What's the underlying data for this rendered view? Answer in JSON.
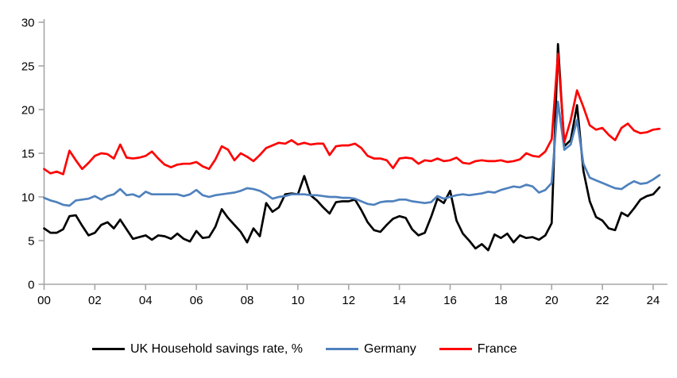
{
  "chart_data": {
    "type": "line",
    "title": "",
    "x_description": "Quarterly data, 2000Q1 to 2024Q2",
    "x_tick_labels": [
      "00",
      "02",
      "04",
      "06",
      "08",
      "10",
      "12",
      "14",
      "16",
      "18",
      "20",
      "22",
      "24"
    ],
    "y_tick_labels": [
      "0",
      "5",
      "10",
      "15",
      "20",
      "25",
      "30"
    ],
    "y_ticks": [
      0,
      5,
      10,
      15,
      20,
      25,
      30
    ],
    "ylim": [
      0,
      30
    ],
    "grid": false,
    "legend_position": "bottom",
    "axis_color": "#a6a6a6",
    "series": [
      {
        "name": "UK Household savings rate, %",
        "color": "#000000",
        "values": [
          6.4,
          5.9,
          5.9,
          6.3,
          7.8,
          7.9,
          6.7,
          5.6,
          5.9,
          6.8,
          7.1,
          6.4,
          7.4,
          6.3,
          5.2,
          5.4,
          5.6,
          5.1,
          5.6,
          5.5,
          5.2,
          5.8,
          5.2,
          4.9,
          6.1,
          5.3,
          5.4,
          6.6,
          8.6,
          7.6,
          6.8,
          6.0,
          4.8,
          6.4,
          5.5,
          9.3,
          8.3,
          8.8,
          10.3,
          10.4,
          10.3,
          12.4,
          10.2,
          9.6,
          8.8,
          8.1,
          9.4,
          9.5,
          9.5,
          9.7,
          8.5,
          7.1,
          6.2,
          6.0,
          6.8,
          7.5,
          7.8,
          7.6,
          6.3,
          5.6,
          5.9,
          7.7,
          9.8,
          9.3,
          10.7,
          7.3,
          5.8,
          5.0,
          4.1,
          4.6,
          3.9,
          5.7,
          5.3,
          5.8,
          4.8,
          5.6,
          5.3,
          5.4,
          5.1,
          5.6,
          7.0,
          27.5,
          15.8,
          16.5,
          20.5,
          13.0,
          9.5,
          7.7,
          7.3,
          6.4,
          6.2,
          8.2,
          7.8,
          8.7,
          9.7,
          10.1,
          10.3,
          11.1
        ]
      },
      {
        "name": "Germany",
        "color": "#4f81bd",
        "values": [
          9.9,
          9.6,
          9.4,
          9.1,
          9.0,
          9.6,
          9.7,
          9.8,
          10.1,
          9.7,
          10.1,
          10.3,
          10.9,
          10.2,
          10.3,
          10.0,
          10.6,
          10.3,
          10.3,
          10.3,
          10.3,
          10.3,
          10.1,
          10.3,
          10.8,
          10.2,
          10.0,
          10.2,
          10.3,
          10.4,
          10.5,
          10.7,
          11.0,
          10.9,
          10.7,
          10.3,
          9.8,
          10.0,
          10.1,
          10.3,
          10.3,
          10.3,
          10.2,
          10.2,
          10.1,
          10.0,
          10.0,
          9.9,
          9.9,
          9.8,
          9.5,
          9.2,
          9.1,
          9.4,
          9.5,
          9.5,
          9.7,
          9.7,
          9.5,
          9.4,
          9.3,
          9.4,
          10.1,
          9.8,
          10.0,
          10.2,
          10.3,
          10.2,
          10.3,
          10.4,
          10.6,
          10.5,
          10.8,
          11.0,
          11.2,
          11.1,
          11.4,
          11.2,
          10.5,
          10.8,
          11.6,
          20.9,
          15.4,
          16.0,
          18.8,
          13.8,
          12.2,
          11.9,
          11.6,
          11.3,
          11.0,
          10.9,
          11.4,
          11.8,
          11.5,
          11.6,
          12.0,
          12.5
        ]
      },
      {
        "name": "France",
        "color": "#ff0000",
        "values": [
          13.2,
          12.7,
          12.9,
          12.6,
          15.3,
          14.2,
          13.2,
          13.9,
          14.7,
          15.0,
          14.9,
          14.4,
          16.0,
          14.5,
          14.4,
          14.5,
          14.7,
          15.2,
          14.4,
          13.7,
          13.4,
          13.7,
          13.8,
          13.8,
          14.0,
          13.5,
          13.2,
          14.3,
          15.8,
          15.4,
          14.2,
          15.0,
          14.6,
          14.1,
          14.8,
          15.6,
          15.9,
          16.2,
          16.1,
          16.5,
          16.0,
          16.2,
          16.0,
          16.1,
          16.1,
          14.8,
          15.8,
          15.9,
          15.9,
          16.1,
          15.6,
          14.7,
          14.4,
          14.4,
          14.2,
          13.3,
          14.4,
          14.5,
          14.4,
          13.8,
          14.2,
          14.1,
          14.4,
          14.1,
          14.2,
          14.5,
          13.9,
          13.8,
          14.1,
          14.2,
          14.1,
          14.1,
          14.2,
          14.0,
          14.1,
          14.3,
          15.0,
          14.7,
          14.6,
          15.2,
          16.6,
          26.4,
          16.3,
          18.8,
          22.2,
          20.3,
          18.2,
          17.7,
          17.9,
          17.1,
          16.5,
          17.9,
          18.4,
          17.6,
          17.3,
          17.4,
          17.7,
          17.8
        ]
      }
    ]
  },
  "legend": {
    "items": [
      {
        "label": "UK Household savings rate, %"
      },
      {
        "label": "Germany"
      },
      {
        "label": "France"
      }
    ]
  }
}
